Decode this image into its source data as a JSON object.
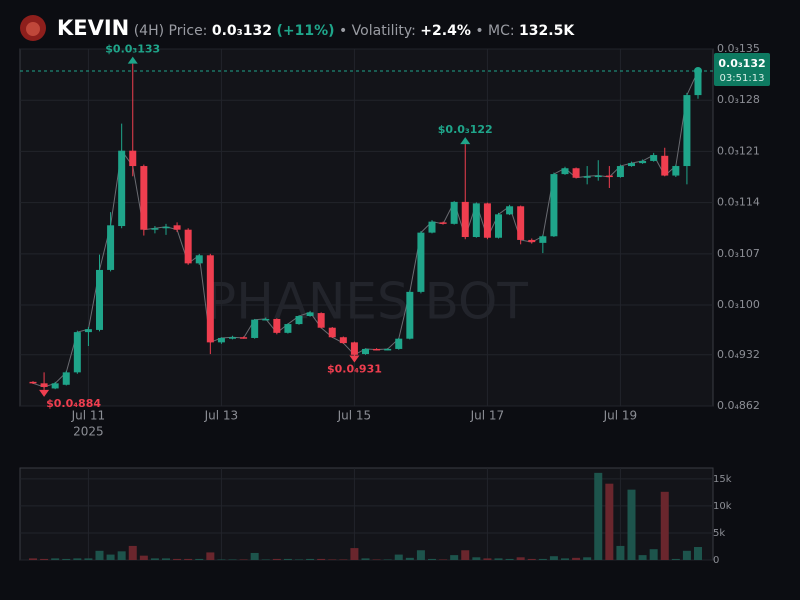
{
  "header": {
    "name": "KEVIN",
    "interval": "(4H)",
    "price_label": "Price:",
    "price": "0.0₃132",
    "change": "(+11%)",
    "volatility_label": "• Volatility:",
    "volatility": "+2.4%",
    "mc_label": "• MC:",
    "mc": "132.5K"
  },
  "watermark": "PHANES BOT",
  "chart_data": [
    {
      "type": "candlestick",
      "up_color": "#1fa58a",
      "down_color": "#ef3e4f",
      "grid": true,
      "categories": [
        null,
        null,
        null,
        null,
        null,
        "Jul 11",
        null,
        null,
        null,
        null,
        null,
        null,
        null,
        null,
        null,
        null,
        null,
        "Jul 13",
        null,
        null,
        null,
        null,
        null,
        null,
        null,
        null,
        null,
        null,
        null,
        "Jul 15",
        null,
        null,
        null,
        null,
        null,
        null,
        null,
        null,
        null,
        null,
        null,
        "Jul 17",
        null,
        null,
        null,
        null,
        null,
        null,
        null,
        null,
        null,
        null,
        null,
        "Jul 19",
        null,
        null,
        null,
        null,
        null,
        null,
        null
      ],
      "x_year_label": "2025",
      "open": [
        8.95e-05,
        8.93e-05,
        8.86e-05,
        8.91e-05,
        9.08e-05,
        9.63e-05,
        9.66e-05,
        0.0001048,
        0.0001108,
        0.0001211,
        0.000119,
        0.0001104,
        0.0001105,
        0.0001109,
        0.0001103,
        0.0001057,
        0.0001068,
        9.49e-05,
        9.55e-05,
        9.56e-05,
        9.55e-05,
        9.8e-05,
        9.81e-05,
        9.62e-05,
        9.74e-05,
        9.85e-05,
        9.89e-05,
        9.69e-05,
        9.56e-05,
        9.49e-05,
        9.33e-05,
        9.4e-05,
        9.39e-05,
        9.4e-05,
        9.54e-05,
        0.0001018,
        0.0001099,
        0.0001113,
        0.0001111,
        0.0001141,
        0.0001093,
        0.0001139,
        0.0001092,
        0.0001124,
        0.0001135,
        0.0001089,
        0.0001085,
        0.0001094,
        0.0001179,
        0.0001187,
        0.0001174,
        0.0001176,
        0.0001177,
        0.0001175,
        0.000119,
        0.0001194,
        0.0001197,
        0.0001204,
        0.0001177,
        0.000119,
        0.0001287
      ],
      "high": [
        8.96e-05,
        9.08e-05,
        8.95e-05,
        9.1e-05,
        9.65e-05,
        9.7e-05,
        0.0001069,
        0.0001127,
        0.0001248,
        0.000133,
        0.0001192,
        0.0001108,
        0.0001111,
        0.0001113,
        0.0001105,
        0.000107,
        0.000107,
        9.56e-05,
        9.58e-05,
        9.57e-05,
        9.81e-05,
        9.83e-05,
        9.82e-05,
        9.75e-05,
        9.86e-05,
        9.92e-05,
        9.9e-05,
        9.7e-05,
        9.57e-05,
        9.5e-05,
        9.41e-05,
        9.41e-05,
        9.41e-05,
        9.55e-05,
        0.000102,
        0.0001101,
        0.0001116,
        0.0001114,
        0.0001142,
        0.000122,
        0.000114,
        0.000114,
        0.0001126,
        0.0001137,
        0.0001136,
        0.0001091,
        0.0001096,
        0.0001181,
        0.0001189,
        0.0001188,
        0.000119,
        0.0001198,
        0.000119,
        0.0001192,
        0.0001196,
        0.0001199,
        0.0001208,
        0.0001215,
        0.0001192,
        0.000129,
        0.0001322
      ],
      "low": [
        8.92e-05,
        8.84e-05,
        8.85e-05,
        8.9e-05,
        9.06e-05,
        9.44e-05,
        9.64e-05,
        0.0001046,
        0.0001105,
        0.0001176,
        0.0001095,
        0.0001098,
        0.0001096,
        0.00011,
        0.0001055,
        0.0001055,
        9.33e-05,
        9.47e-05,
        9.53e-05,
        9.54e-05,
        9.54e-05,
        9.79e-05,
        9.6e-05,
        9.61e-05,
        9.73e-05,
        9.84e-05,
        9.68e-05,
        9.55e-05,
        9.47e-05,
        9.31e-05,
        9.32e-05,
        9.38e-05,
        9.38e-05,
        9.39e-05,
        9.53e-05,
        0.0001016,
        0.0001098,
        0.000111,
        0.000111,
        0.000109,
        0.0001092,
        0.000109,
        0.0001091,
        0.0001123,
        0.0001083,
        0.0001084,
        0.0001071,
        0.0001093,
        0.0001178,
        0.0001173,
        0.0001165,
        0.000117,
        0.000116,
        0.0001174,
        0.0001189,
        0.0001193,
        0.0001196,
        0.0001176,
        0.0001175,
        0.0001165,
        0.0001282
      ],
      "close": [
        8.93e-05,
        8.88e-05,
        8.93e-05,
        9.08e-05,
        9.63e-05,
        9.67e-05,
        0.0001048,
        0.0001109,
        0.0001211,
        0.000119,
        0.0001103,
        0.0001105,
        0.0001107,
        0.0001103,
        0.0001057,
        0.0001068,
        9.49e-05,
        9.55e-05,
        9.56e-05,
        9.55e-05,
        9.8e-05,
        9.81e-05,
        9.62e-05,
        9.74e-05,
        9.85e-05,
        9.9e-05,
        9.69e-05,
        9.56e-05,
        9.48e-05,
        9.32e-05,
        9.4e-05,
        9.39e-05,
        9.4e-05,
        9.54e-05,
        0.0001018,
        0.0001099,
        0.0001114,
        0.0001111,
        0.0001141,
        0.0001093,
        0.0001139,
        0.0001092,
        0.0001124,
        0.0001135,
        0.0001089,
        0.0001086,
        0.0001094,
        0.0001179,
        0.0001187,
        0.0001174,
        0.0001176,
        0.0001177,
        0.0001175,
        0.000119,
        0.0001194,
        0.0001197,
        0.0001205,
        0.0001177,
        0.000119,
        0.0001287,
        0.000132
      ],
      "ylim": [
        8.62e-05,
        0.000135
      ],
      "yticks": [
        {
          "value": 0.000135,
          "label": "0.0₃135"
        },
        {
          "value": 0.000128,
          "label": "0.0₃128"
        },
        {
          "value": 0.000121,
          "label": "0.0₃121"
        },
        {
          "value": 0.000114,
          "label": "0.0₃114"
        },
        {
          "value": 0.000107,
          "label": "0.0₃107"
        },
        {
          "value": 0.0001,
          "label": "0.0₃100"
        },
        {
          "value": 9.32e-05,
          "label": "0.0₄932"
        },
        {
          "value": 8.62e-05,
          "label": "0.0₄862"
        }
      ],
      "annotations": [
        {
          "label": "$0.0₃133",
          "value": 0.000133,
          "at": "high"
        },
        {
          "label": "$0.0₃122",
          "value": 0.000122,
          "at": "high"
        },
        {
          "label": "$0.0₄931",
          "value": 9.31e-05,
          "at": "low"
        },
        {
          "label": "$0.0₄884",
          "value": 8.84e-05,
          "at": "low"
        }
      ],
      "last_price": {
        "value": 0.000132,
        "label": "0.0₃132"
      },
      "countdown": "03:51:13"
    },
    {
      "type": "bar",
      "up_color": "#1d544c",
      "down_color": "#6a262d",
      "grid": true,
      "values": [
        300,
        200,
        300,
        200,
        300,
        300,
        1700,
        1000,
        1600,
        2600,
        800,
        300,
        300,
        200,
        200,
        200,
        1400,
        100,
        100,
        100,
        1300,
        100,
        200,
        200,
        100,
        200,
        200,
        100,
        100,
        2200,
        300,
        100,
        100,
        1000,
        400,
        1800,
        200,
        100,
        900,
        1800,
        500,
        300,
        300,
        200,
        500,
        200,
        200,
        700,
        300,
        400,
        500,
        16100,
        14100,
        2600,
        13000,
        900,
        2000,
        12600,
        200,
        1700,
        2400
      ],
      "ylim": [
        0,
        17000
      ],
      "yticks": [
        0,
        {
          "value": 5000,
          "label": "5k"
        },
        {
          "value": 10000,
          "label": "10k"
        },
        {
          "value": 15000,
          "label": "15k"
        }
      ]
    }
  ]
}
